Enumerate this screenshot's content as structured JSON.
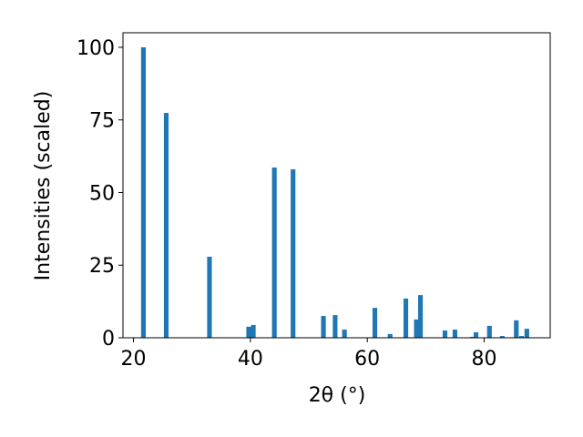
{
  "chart_data": {
    "type": "bar",
    "xlabel": "2θ (°)",
    "ylabel": "Intensities (scaled)",
    "x": [
      21.7,
      25.6,
      33.0,
      39.7,
      40.5,
      44.1,
      47.3,
      52.5,
      54.5,
      56.1,
      61.3,
      63.9,
      66.6,
      68.4,
      69.1,
      73.3,
      75.0,
      78.0,
      78.6,
      80.9,
      83.1,
      85.5,
      86.4,
      87.3
    ],
    "values": [
      100,
      77.4,
      27.9,
      3.8,
      4.4,
      58.6,
      58.0,
      7.5,
      7.8,
      2.8,
      10.3,
      1.3,
      13.5,
      6.3,
      14.7,
      2.5,
      2.8,
      0.3,
      1.9,
      4.1,
      0.6,
      6.0,
      0.6,
      3.1
    ],
    "color": "#1f77b4",
    "xlim": [
      18.2,
      91.3
    ],
    "ylim": [
      0,
      105
    ],
    "xticks": [
      20,
      40,
      60,
      80
    ],
    "yticks": [
      0,
      25,
      50,
      75,
      100
    ]
  }
}
